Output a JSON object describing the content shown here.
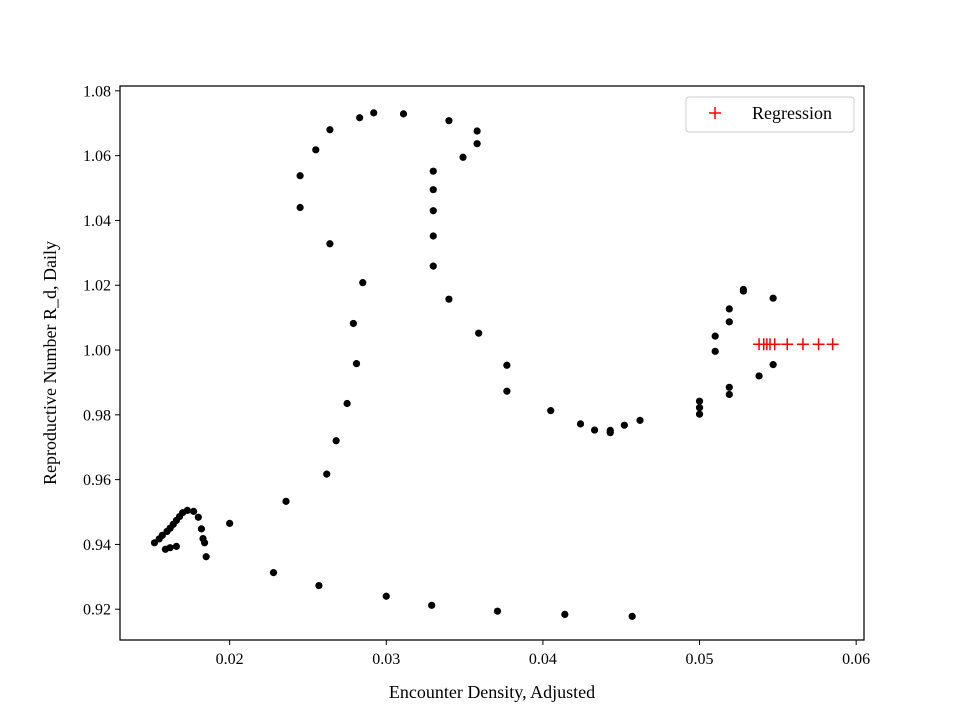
{
  "chart_data": {
    "type": "scatter",
    "title": "",
    "xlabel": "Encounter Density, Adjusted",
    "ylabel": "Reproductive Number R_d, Daily",
    "xlim": [
      0.013,
      0.0605
    ],
    "ylim": [
      0.9105,
      1.0815
    ],
    "xticks": [
      0.02,
      0.03,
      0.04,
      0.05,
      0.06
    ],
    "xtick_labels": [
      "0.02",
      "0.03",
      "0.04",
      "0.05",
      "0.06"
    ],
    "yticks": [
      0.92,
      0.94,
      0.96,
      0.98,
      1.0,
      1.02,
      1.04,
      1.06,
      1.08
    ],
    "ytick_labels": [
      "0.92",
      "0.94",
      "0.96",
      "0.98",
      "1.00",
      "1.02",
      "1.04",
      "1.06",
      "1.08"
    ],
    "grid": false,
    "legend": {
      "position": "top-right",
      "entries": [
        "Regression"
      ]
    },
    "series": [
      {
        "marker": "dot",
        "color": "#000000",
        "points": [
          [
            0.0152,
            0.9405
          ],
          [
            0.0155,
            0.9417
          ],
          [
            0.0157,
            0.9428
          ],
          [
            0.016,
            0.944
          ],
          [
            0.0162,
            0.945
          ],
          [
            0.0164,
            0.9462
          ],
          [
            0.0166,
            0.9474
          ],
          [
            0.0168,
            0.9486
          ],
          [
            0.017,
            0.9498
          ],
          [
            0.0173,
            0.9505
          ],
          [
            0.0177,
            0.9502
          ],
          [
            0.018,
            0.9484
          ],
          [
            0.0182,
            0.9448
          ],
          [
            0.0183,
            0.9418
          ],
          [
            0.0184,
            0.9405
          ],
          [
            0.0185,
            0.9362
          ],
          [
            0.0159,
            0.9385
          ],
          [
            0.0162,
            0.939
          ],
          [
            0.0166,
            0.9394
          ],
          [
            0.02,
            0.9465
          ],
          [
            0.0228,
            0.9313
          ],
          [
            0.0257,
            0.9273
          ],
          [
            0.03,
            0.924
          ],
          [
            0.0329,
            0.9212
          ],
          [
            0.0371,
            0.9194
          ],
          [
            0.0414,
            0.9184
          ],
          [
            0.0457,
            0.9178
          ],
          [
            0.0236,
            0.9533
          ],
          [
            0.0262,
            0.9617
          ],
          [
            0.0268,
            0.972
          ],
          [
            0.0275,
            0.9835
          ],
          [
            0.0279,
            1.0082
          ],
          [
            0.0281,
            0.9958
          ],
          [
            0.0285,
            1.0208
          ],
          [
            0.0264,
            1.0328
          ],
          [
            0.0245,
            1.044
          ],
          [
            0.0245,
            1.0538
          ],
          [
            0.0255,
            1.0618
          ],
          [
            0.0264,
            1.068
          ],
          [
            0.0283,
            1.0717
          ],
          [
            0.0292,
            1.0732
          ],
          [
            0.0311,
            1.0729
          ],
          [
            0.034,
            1.0708
          ],
          [
            0.0358,
            1.0676
          ],
          [
            0.0358,
            1.0637
          ],
          [
            0.0349,
            1.0595
          ],
          [
            0.033,
            1.0552
          ],
          [
            0.033,
            1.0495
          ],
          [
            0.033,
            1.043
          ],
          [
            0.033,
            1.0352
          ],
          [
            0.033,
            1.0259
          ],
          [
            0.034,
            1.0157
          ],
          [
            0.0359,
            1.0052
          ],
          [
            0.0377,
            0.9953
          ],
          [
            0.0377,
            0.9873
          ],
          [
            0.0405,
            0.9813
          ],
          [
            0.0424,
            0.9772
          ],
          [
            0.0433,
            0.9753
          ],
          [
            0.0443,
            0.9745
          ],
          [
            0.0443,
            0.9752
          ],
          [
            0.0452,
            0.9768
          ],
          [
            0.0462,
            0.9783
          ],
          [
            0.05,
            0.9802
          ],
          [
            0.05,
            0.9822
          ],
          [
            0.05,
            0.9842
          ],
          [
            0.0519,
            0.9863
          ],
          [
            0.0519,
            0.9885
          ],
          [
            0.051,
            0.9996
          ],
          [
            0.051,
            1.0043
          ],
          [
            0.0519,
            1.0087
          ],
          [
            0.0519,
            1.0127
          ],
          [
            0.0528,
            1.0182
          ],
          [
            0.0528,
            1.0187
          ],
          [
            0.0547,
            1.016
          ],
          [
            0.0538,
            0.992
          ],
          [
            0.0547,
            0.9955
          ]
        ]
      },
      {
        "name": "Regression",
        "marker": "plus",
        "color": "#ff0000",
        "points": [
          [
            0.0538,
            1.0018
          ],
          [
            0.0541,
            1.0018
          ],
          [
            0.0543,
            1.0018
          ],
          [
            0.0545,
            1.0018
          ],
          [
            0.0548,
            1.0018
          ],
          [
            0.0556,
            1.0018
          ],
          [
            0.0566,
            1.0018
          ],
          [
            0.0576,
            1.0018
          ],
          [
            0.0585,
            1.0018
          ]
        ]
      }
    ]
  }
}
